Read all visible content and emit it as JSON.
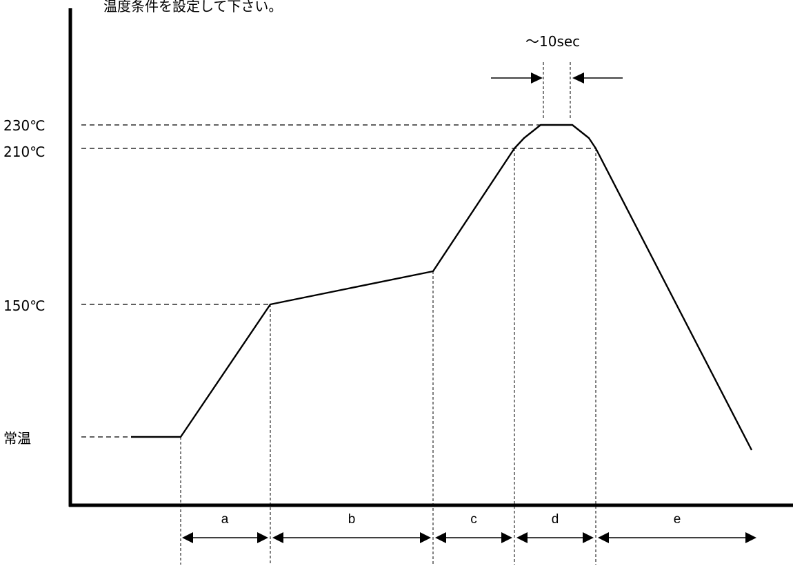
{
  "title": "温度条件を設定して下さい。",
  "peak_duration_label": "〜10sec",
  "y_labels": {
    "t230": "230℃",
    "t210": "210℃",
    "t150": "150℃",
    "room": "常温"
  },
  "segments": [
    "a",
    "b",
    "c",
    "d",
    "e"
  ],
  "colors": {
    "line": "#000000",
    "background": "#ffffff"
  }
}
